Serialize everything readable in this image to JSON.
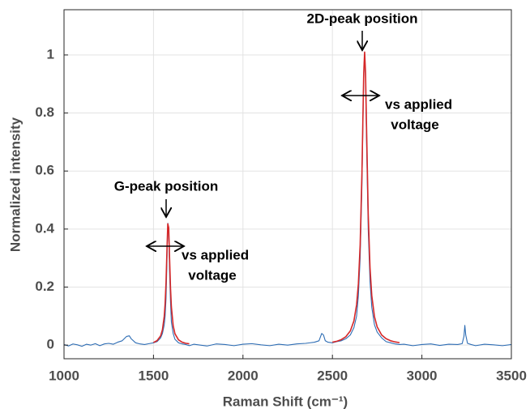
{
  "chart_data": {
    "type": "line",
    "xlabel": "Raman Shift (cm⁻¹)",
    "ylabel": "Normalized intensity",
    "annotations": [
      "2D-peak position",
      "vs applied",
      "voltage",
      "G-peak position",
      "vs applied",
      "voltage"
    ],
    "x": [
      1000,
      1025,
      1050,
      1075,
      1100,
      1125,
      1150,
      1175,
      1200,
      1225,
      1250,
      1275,
      1300,
      1325,
      1350,
      1365,
      1375,
      1400,
      1425,
      1450,
      1475,
      1500,
      1520,
      1540,
      1550,
      1560,
      1565,
      1570,
      1575,
      1580,
      1585,
      1590,
      1595,
      1600,
      1610,
      1620,
      1640,
      1660,
      1680,
      1700,
      1725,
      1750,
      1800,
      1850,
      1900,
      1950,
      2000,
      2050,
      2100,
      2150,
      2200,
      2250,
      2300,
      2350,
      2400,
      2425,
      2440,
      2450,
      2460,
      2475,
      2500,
      2525,
      2550,
      2575,
      2600,
      2620,
      2635,
      2645,
      2655,
      2665,
      2670,
      2675,
      2680,
      2685,
      2690,
      2700,
      2710,
      2720,
      2735,
      2750,
      2775,
      2800,
      2825,
      2850,
      2875,
      2900,
      2950,
      3000,
      3050,
      3100,
      3150,
      3200,
      3225,
      3235,
      3240,
      3245,
      3255,
      3275,
      3300,
      3350,
      3400,
      3450,
      3500
    ],
    "series": [
      {
        "color": "#2e6db4",
        "values": [
          0.002,
          -0.003,
          0.004,
          0.001,
          -0.004,
          0.003,
          0,
          0.005,
          -0.002,
          0.004,
          0.006,
          0.003,
          0.01,
          0.015,
          0.03,
          0.032,
          0.022,
          0.008,
          0.004,
          0.002,
          0.005,
          0.008,
          0.012,
          0.025,
          0.04,
          0.07,
          0.1,
          0.16,
          0.28,
          0.42,
          0.4,
          0.25,
          0.15,
          0.08,
          0.04,
          0.02,
          0.008,
          0.004,
          0.002,
          -0.002,
          0.003,
          0.001,
          -0.003,
          0.004,
          0.002,
          -0.002,
          0.003,
          0.005,
          0.001,
          -0.002,
          0.003,
          0,
          0.004,
          0.006,
          0.01,
          0.015,
          0.04,
          0.035,
          0.015,
          0.01,
          0.008,
          0.012,
          0.015,
          0.022,
          0.035,
          0.06,
          0.1,
          0.17,
          0.3,
          0.55,
          0.75,
          0.93,
          1.01,
          0.92,
          0.72,
          0.4,
          0.22,
          0.13,
          0.07,
          0.045,
          0.025,
          0.012,
          0.008,
          0.004,
          0.002,
          0.003,
          -0.002,
          0.002,
          0.004,
          -0.001,
          0.003,
          0.002,
          0.005,
          0.03,
          0.068,
          0.035,
          0.006,
          0.002,
          -0.002,
          0.003,
          0.001,
          -0.002,
          0.002
        ]
      },
      {
        "color": "#d62728",
        "values": [
          null,
          null,
          null,
          null,
          null,
          null,
          null,
          null,
          null,
          null,
          null,
          null,
          null,
          null,
          null,
          null,
          null,
          null,
          null,
          null,
          null,
          0.009,
          0.0155,
          0.032,
          0.053,
          0.099,
          0.143,
          0.215,
          0.321,
          0.418,
          0.405,
          0.298,
          0.198,
          0.132,
          0.067,
          0.039,
          0.018,
          0.01,
          0.0064,
          0.0044,
          null,
          null,
          null,
          null,
          null,
          null,
          null,
          null,
          null,
          null,
          null,
          null,
          null,
          null,
          null,
          null,
          null,
          null,
          null,
          null,
          0.01,
          0.0134,
          0.019,
          0.029,
          0.049,
          0.083,
          0.139,
          0.211,
          0.345,
          0.596,
          0.772,
          0.938,
          1.01,
          0.938,
          0.772,
          0.453,
          0.267,
          0.17,
          0.098,
          0.063,
          0.035,
          0.022,
          0.015,
          0.011,
          0.0085,
          null,
          null,
          null,
          null,
          null,
          null,
          null,
          null,
          null,
          null,
          null,
          null,
          null,
          null,
          null,
          null,
          null,
          null
        ]
      }
    ],
    "xlim": [
      1000,
      3500
    ],
    "xticks": [
      1000,
      1500,
      2000,
      2500,
      3000,
      3500
    ],
    "ylim": [
      -0.047,
      1.156
    ],
    "yticks": [
      0,
      0.2,
      0.4,
      0.6,
      0.8,
      1
    ],
    "grid": true
  }
}
